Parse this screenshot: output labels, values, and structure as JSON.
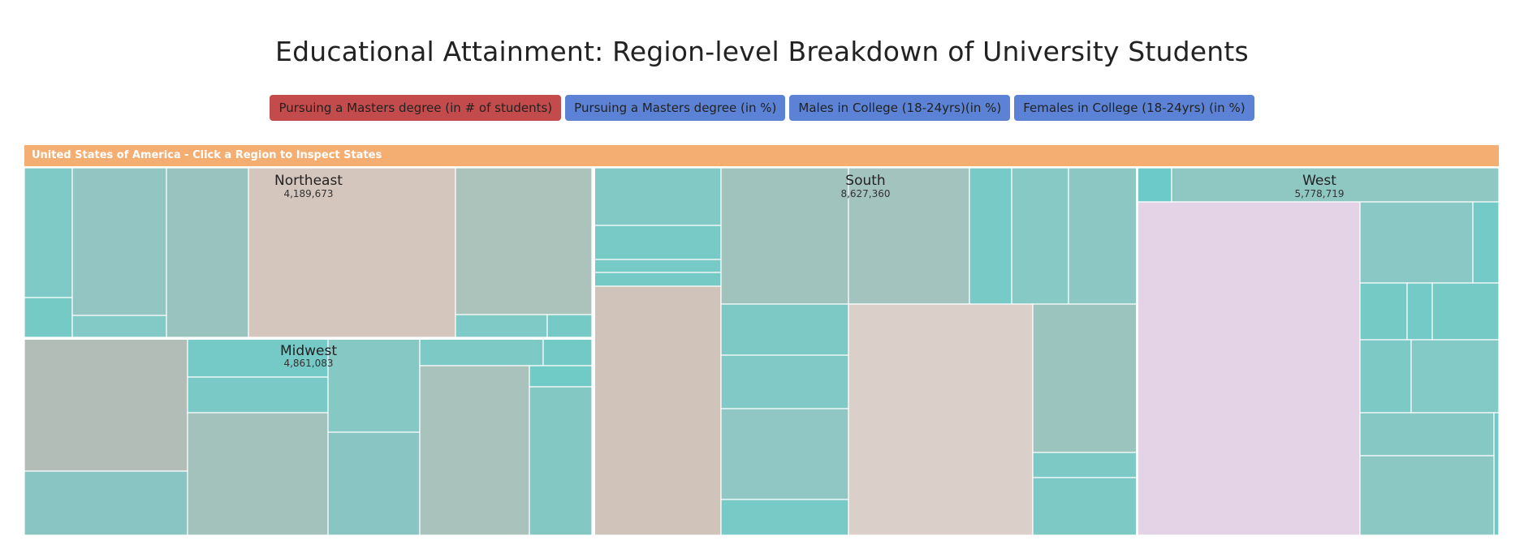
{
  "page": {
    "title": "Educational Attainment: Region-level Breakdown of University Students"
  },
  "buttons": [
    {
      "label": "Pursuing a Masters degree (in # of students)",
      "color": "#c34b4b",
      "active": true
    },
    {
      "label": "Pursuing a Masters degree (in %)",
      "color": "#5b82d4",
      "active": false
    },
    {
      "label": "Males in College (18-24yrs)(in %)",
      "color": "#5b82d4",
      "active": false
    },
    {
      "label": "Females in College (18-24yrs) (in %)",
      "color": "#5b82d4",
      "active": false
    }
  ],
  "header": {
    "label": "United States of America - Click a Region to Inspect States",
    "color": "#f5ae72"
  },
  "colors": {
    "teal": "#73cac6",
    "separator": "#ffffff"
  },
  "chart_data": {
    "type": "treemap",
    "title": "Educational Attainment: Region-level Breakdown of University Students",
    "root": "United States of America",
    "regions": [
      {
        "name": "Northeast",
        "value": 4189673,
        "value_label": "4,189,673"
      },
      {
        "name": "Midwest",
        "value": 4861083,
        "value_label": "4,861,083"
      },
      {
        "name": "South",
        "value": 8627360,
        "value_label": "8,627,360"
      },
      {
        "name": "West",
        "value": 5778719,
        "value_label": "5,778,719"
      }
    ]
  }
}
